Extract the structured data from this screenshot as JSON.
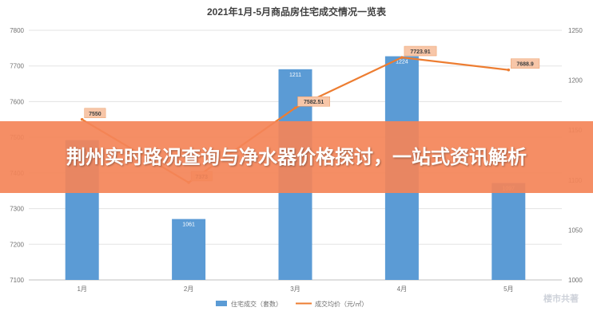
{
  "chart_data": {
    "type": "bar+line",
    "title": "2021年1月-5月商品房住宅成交情况一览表",
    "categories": [
      "1月",
      "2月",
      "3月",
      "4月",
      "5月"
    ],
    "series": [
      {
        "name": "住宅成交（套数）",
        "type": "bar",
        "axis": "right",
        "color": "#5b9bd5",
        "values": [
          1140,
          1061,
          1211,
          1224,
          1097
        ],
        "labels": [
          "",
          "1061",
          "1211",
          "1224",
          "1097"
        ]
      },
      {
        "name": "成交均价（元/㎡）",
        "type": "line",
        "axis": "left",
        "color": "#ed7d31",
        "values": [
          7550,
          7373,
          7582.51,
          7723.91,
          7688.9
        ],
        "labels": [
          "7550",
          "7373",
          "7582.51",
          "7723.91",
          "7688.9"
        ]
      }
    ],
    "y_left": {
      "min": 7100,
      "max": 7800,
      "ticks": [
        "7100",
        "7200",
        "7300",
        "7400",
        "7500",
        "7600",
        "7700",
        "7800"
      ]
    },
    "y_right": {
      "min": 1000,
      "max": 1250,
      "ticks": [
        "1000",
        "1050",
        "1100",
        "1150",
        "1200",
        "1250"
      ]
    },
    "grid": true,
    "legend_position": "bottom"
  },
  "banner": {
    "text": "荆州实时路况查询与净水器价格探讨，一站式资讯解析"
  },
  "watermark": {
    "text": "楼市共著"
  }
}
